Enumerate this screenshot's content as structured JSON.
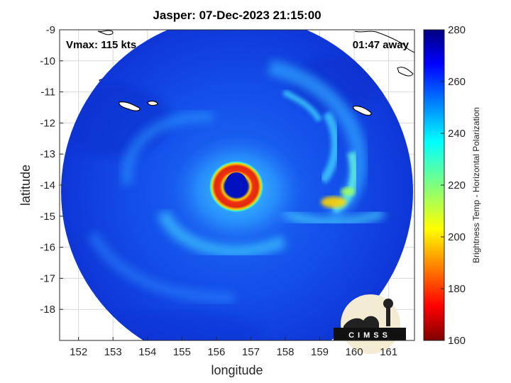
{
  "title": "Jasper: 07-Dec-2023 21:15:00",
  "vmax_text": "Vmax: 115 kts",
  "time_text": "01:47 away",
  "logo_text": "CIMSS",
  "map": {
    "xlabel": "longitude",
    "ylabel": "latitude",
    "x_ticks": [
      "152",
      "153",
      "154",
      "155",
      "156",
      "157",
      "158",
      "159",
      "160",
      "161"
    ],
    "y_ticks": [
      "-9",
      "-10",
      "-11",
      "-12",
      "-13",
      "-14",
      "-15",
      "-16",
      "-17",
      "-18"
    ],
    "xlim": [
      151.45,
      161.75
    ],
    "ylim": [
      -19.0,
      -9.0
    ],
    "grid": true
  },
  "storm": {
    "name": "Jasper",
    "vmax_kts": 115,
    "eye_center": [
      156.55,
      -13.95
    ]
  },
  "colorbar": {
    "label": "Brightness Temp - Horizontal Polarization",
    "ticks": [
      "280",
      "260",
      "240",
      "220",
      "200",
      "180",
      "160"
    ],
    "range": [
      160,
      280
    ],
    "colormap": "jet"
  },
  "colors": {
    "eye": "#0015cc",
    "background_field": "#1646e6",
    "eyewall": "#e02a10"
  }
}
